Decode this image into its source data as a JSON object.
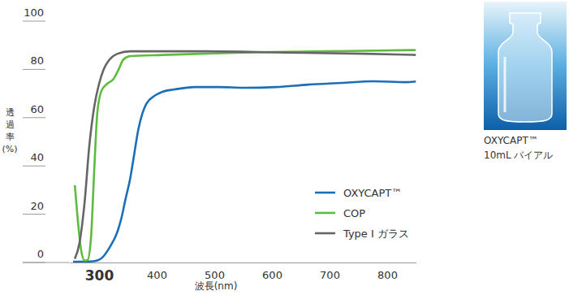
{
  "chart_data": {
    "type": "line",
    "x_label": "波長(nm)",
    "y_label": "透過率(%)",
    "xlim": [
      250,
      850
    ],
    "xticks": [
      300,
      400,
      500,
      600,
      700,
      800
    ],
    "ylim": [
      0,
      100
    ],
    "yticks": [
      0,
      20,
      40,
      60,
      80,
      100
    ],
    "grid": false,
    "legend": "lower right",
    "series": [
      {
        "name": "OXYCAPT™",
        "color": "#1b6fb8",
        "x": [
          255,
          290,
          304,
          318,
          332,
          339,
          346,
          354,
          361,
          368,
          375,
          382,
          396,
          410,
          431,
          466,
          508,
          551,
          607,
          663,
          720,
          776,
          832,
          850
        ],
        "values": [
          0.3,
          0.5,
          1.7,
          6.1,
          12.8,
          18.5,
          26.3,
          34.7,
          44.8,
          54.9,
          61.6,
          65.7,
          69.0,
          70.7,
          71.7,
          72.7,
          72.7,
          72.4,
          72.7,
          73.7,
          74.4,
          75.1,
          74.7,
          75.0
        ]
      },
      {
        "name": "COP",
        "color": "#5dbb3f",
        "x": [
          258,
          263,
          269,
          275,
          280,
          286,
          292,
          297,
          304,
          314,
          325,
          334,
          342,
          354,
          410,
          551,
          692,
          850
        ],
        "values": [
          32,
          18,
          5,
          0.8,
          1,
          10,
          40,
          62,
          71,
          74,
          76,
          80,
          84,
          85.5,
          86,
          87,
          87.5,
          88
        ]
      },
      {
        "name": "Type I ガラス",
        "color": "#666666",
        "x": [
          258,
          266,
          275,
          283,
          292,
          300,
          308,
          318,
          332,
          354,
          480,
          621,
          761,
          850
        ],
        "values": [
          1.5,
          8,
          25,
          48,
          65,
          74,
          80,
          84,
          86.5,
          87.5,
          87.5,
          87,
          86.5,
          86
        ]
      }
    ]
  },
  "photo": {
    "caption": [
      "OXYCAPT™",
      "10mL バイアル"
    ]
  }
}
